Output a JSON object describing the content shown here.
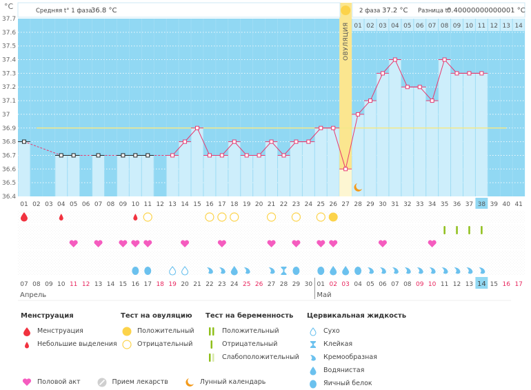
{
  "header": {
    "unit": "°C",
    "phase1_label": "Средняя t° 1 фаза",
    "phase1_value": "36.8 °C",
    "phase2_label": "2 фаза",
    "phase2_value": "37.2 °C",
    "diff_label": "Разница t°",
    "diff_value": "0.40000000000001 °C",
    "ovulation_label": "ОВУЛЯЦИЯ"
  },
  "colors": {
    "sky": "#91d8f3",
    "bar": "#cdeefb",
    "line": "#e8386e",
    "coverline": "#f3e889",
    "ovulation_band": "#fbe68f",
    "ovulation_band_light": "#fdf6d2",
    "today": "#91d8f3",
    "weekend": "#e8265e",
    "menstruation": "#f1323f",
    "ovulation_test": "#fcd34a",
    "pregnancy_test": "#8fbf1a",
    "sex": "#f55cbf",
    "cervical": "#6bc1ee",
    "moon": "#f39a1a"
  },
  "chart_data": {
    "type": "line",
    "title": "",
    "xlabel": "День цикла",
    "ylabel": "°C",
    "ylim": [
      36.4,
      37.7
    ],
    "yticks": [
      "36.4",
      "36.5",
      "36.6",
      "36.7",
      "36.8",
      "36.9",
      "37",
      "37.1",
      "37.2",
      "37.3",
      "37.4",
      "37.5",
      "37.6",
      "37.7"
    ],
    "grid": true,
    "cycle_days": [
      "01",
      "02",
      "03",
      "04",
      "05",
      "06",
      "07",
      "08",
      "09",
      "10",
      "11",
      "12",
      "13",
      "14",
      "15",
      "16",
      "17",
      "18",
      "19",
      "20",
      "21",
      "22",
      "23",
      "24",
      "25",
      "26",
      "27",
      "28",
      "29",
      "30",
      "31",
      "32",
      "33",
      "34",
      "35",
      "36",
      "37",
      "38",
      "39",
      "40",
      "41"
    ],
    "dates": [
      "07",
      "08",
      "09",
      "10",
      "11",
      "12",
      "13",
      "14",
      "15",
      "16",
      "17",
      "18",
      "19",
      "20",
      "21",
      "22",
      "23",
      "24",
      "25",
      "26",
      "27",
      "28",
      "29",
      "30",
      "01",
      "02",
      "03",
      "04",
      "05",
      "06",
      "07",
      "08",
      "09",
      "10",
      "11",
      "12",
      "13",
      "14",
      "15",
      "16",
      "17"
    ],
    "weekend_dates_idx": [
      4,
      5,
      11,
      12,
      18,
      19,
      25,
      26,
      32,
      33,
      39,
      40
    ],
    "months": [
      {
        "label": "Апрель",
        "start_idx": 0
      },
      {
        "label": "Май",
        "start_idx": 24
      }
    ],
    "temperatures": [
      36.8,
      null,
      null,
      36.7,
      36.7,
      null,
      36.7,
      null,
      36.7,
      36.7,
      36.7,
      null,
      36.7,
      36.8,
      36.9,
      36.7,
      36.7,
      36.8,
      36.7,
      36.7,
      36.8,
      36.7,
      36.8,
      36.8,
      36.9,
      36.9,
      36.6,
      37.0,
      37.1,
      37.3,
      37.4,
      37.2,
      37.2,
      37.1,
      37.4,
      37.3,
      37.3,
      37.3,
      null,
      null,
      null
    ],
    "excluded_points_idx": [
      0,
      3,
      4,
      6,
      8,
      9,
      10
    ],
    "coverline": 36.9,
    "coverline_range_idx": [
      1,
      39
    ],
    "ovulation_day_idx": 26,
    "today_idx": 37,
    "phase2_header_days": [
      "01",
      "02",
      "03",
      "04",
      "05",
      "06",
      "07",
      "08",
      "09",
      "10",
      "11",
      "12",
      "13",
      "14"
    ],
    "markers": {
      "menstruation": [
        {
          "idx": 0,
          "type": "heavy"
        },
        {
          "idx": 3,
          "type": "spotting"
        },
        {
          "idx": 9,
          "type": "spotting"
        }
      ],
      "ovulation_test": [
        {
          "idx": 10,
          "type": "negative"
        },
        {
          "idx": 15,
          "type": "negative"
        },
        {
          "idx": 16,
          "type": "negative"
        },
        {
          "idx": 17,
          "type": "negative"
        },
        {
          "idx": 20,
          "type": "negative"
        },
        {
          "idx": 22,
          "type": "negative"
        },
        {
          "idx": 24,
          "type": "negative"
        },
        {
          "idx": 25,
          "type": "positive"
        }
      ],
      "pregnancy_test": [
        {
          "idx": 34,
          "type": "negative"
        },
        {
          "idx": 35,
          "type": "negative"
        },
        {
          "idx": 36,
          "type": "negative"
        },
        {
          "idx": 37,
          "type": "negative"
        }
      ],
      "sex": [
        4,
        6,
        8,
        9,
        10,
        13,
        16,
        20,
        22,
        24,
        25,
        29,
        33
      ],
      "cervical": [
        {
          "idx": 9,
          "type": "eggwhite"
        },
        {
          "idx": 10,
          "type": "eggwhite"
        },
        {
          "idx": 12,
          "type": "dry"
        },
        {
          "idx": 13,
          "type": "dry"
        },
        {
          "idx": 15,
          "type": "creamy"
        },
        {
          "idx": 16,
          "type": "creamy"
        },
        {
          "idx": 17,
          "type": "watery"
        },
        {
          "idx": 18,
          "type": "creamy"
        },
        {
          "idx": 20,
          "type": "creamy"
        },
        {
          "idx": 21,
          "type": "sticky"
        },
        {
          "idx": 22,
          "type": "eggwhite"
        },
        {
          "idx": 24,
          "type": "eggwhite"
        },
        {
          "idx": 25,
          "type": "watery"
        },
        {
          "idx": 26,
          "type": "watery"
        },
        {
          "idx": 27,
          "type": "eggwhite"
        },
        {
          "idx": 28,
          "type": "creamy"
        },
        {
          "idx": 29,
          "type": "creamy"
        },
        {
          "idx": 30,
          "type": "creamy"
        },
        {
          "idx": 31,
          "type": "creamy"
        },
        {
          "idx": 32,
          "type": "creamy"
        },
        {
          "idx": 33,
          "type": "creamy"
        },
        {
          "idx": 34,
          "type": "creamy"
        },
        {
          "idx": 35,
          "type": "creamy"
        },
        {
          "idx": 36,
          "type": "creamy"
        },
        {
          "idx": 37,
          "type": "creamy"
        }
      ],
      "moon": [
        27
      ]
    }
  },
  "legend": {
    "menstruation": {
      "title": "Менструация",
      "items": [
        "Менструация",
        "Небольшие выделения"
      ]
    },
    "ovulation_test": {
      "title": "Тест на овуляцию",
      "items": [
        "Положительный",
        "Отрицательный"
      ]
    },
    "pregnancy_test": {
      "title": "Тест на беременность",
      "items": [
        "Положительный",
        "Отрицательный",
        "Слабоположительный"
      ]
    },
    "cervical": {
      "title": "Цервикальная жидкость",
      "items": [
        "Сухо",
        "Клейкая",
        "Кремообразная",
        "Водянистая",
        "Яичный белок"
      ]
    },
    "other": [
      "Половой акт",
      "Прием лекарств",
      "Лунный календарь"
    ]
  }
}
